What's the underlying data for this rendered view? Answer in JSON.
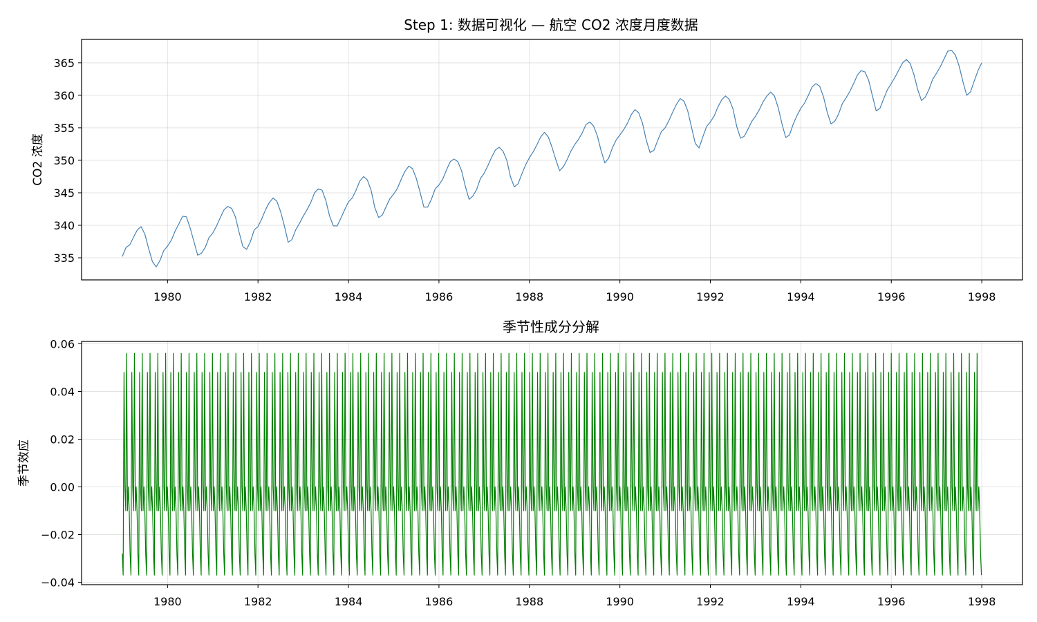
{
  "chart_data": [
    {
      "type": "line",
      "title": "Step 1: 数据可视化 — 航空 CO2 浓度月度数据",
      "xlabel": "",
      "ylabel": "CO2 浓度",
      "xlim": [
        1978.1,
        1998.9
      ],
      "ylim": [
        331.6,
        368.6
      ],
      "xticks": [
        1980,
        1982,
        1984,
        1986,
        1988,
        1990,
        1992,
        1994,
        1996,
        1998
      ],
      "yticks": [
        335,
        340,
        345,
        350,
        355,
        360,
        365
      ],
      "grid": true,
      "color": "#4682b4",
      "series": [
        {
          "start": "1979-01",
          "frequency": "monthly",
          "values": [
            335.2,
            336.6,
            337.0,
            338.2,
            339.3,
            339.8,
            338.6,
            336.4,
            334.4,
            333.6,
            334.6,
            336.1,
            336.8,
            337.7,
            339.1,
            340.2,
            341.4,
            341.3,
            339.6,
            337.5,
            335.4,
            335.7,
            336.6,
            338.1,
            338.8,
            339.9,
            341.2,
            342.4,
            342.9,
            342.6,
            341.3,
            338.9,
            336.7,
            336.3,
            337.5,
            339.3,
            339.8,
            341.0,
            342.4,
            343.5,
            344.2,
            343.7,
            342.1,
            339.9,
            337.4,
            337.8,
            339.3,
            340.3,
            341.4,
            342.4,
            343.5,
            345.0,
            345.6,
            345.4,
            343.8,
            341.4,
            339.9,
            339.9,
            341.1,
            342.4,
            343.6,
            344.2,
            345.4,
            346.8,
            347.5,
            347.0,
            345.4,
            342.7,
            341.2,
            341.6,
            342.9,
            344.1,
            344.8,
            345.7,
            347.1,
            348.3,
            349.1,
            348.7,
            347.2,
            345.1,
            342.8,
            342.8,
            344.0,
            345.6,
            346.2,
            347.1,
            348.5,
            349.8,
            350.2,
            349.8,
            348.4,
            346.0,
            344.0,
            344.5,
            345.5,
            347.2,
            348.0,
            349.2,
            350.5,
            351.6,
            352.0,
            351.4,
            350.0,
            347.4,
            345.9,
            346.4,
            347.9,
            349.3,
            350.4,
            351.3,
            352.4,
            353.6,
            354.3,
            353.6,
            352.0,
            350.1,
            348.4,
            349.0,
            350.1,
            351.4,
            352.4,
            353.2,
            354.2,
            355.5,
            355.9,
            355.3,
            353.8,
            351.5,
            349.6,
            350.3,
            351.9,
            353.1,
            353.9,
            354.7,
            355.7,
            357.0,
            357.8,
            357.3,
            355.7,
            353.1,
            351.2,
            351.5,
            353.0,
            354.4,
            355.0,
            356.1,
            357.4,
            358.6,
            359.5,
            359.1,
            357.6,
            355.1,
            352.6,
            351.9,
            353.6,
            355.2,
            355.9,
            356.8,
            358.2,
            359.3,
            359.9,
            359.4,
            357.9,
            355.2,
            353.4,
            353.7,
            354.8,
            356.0,
            356.8,
            357.8,
            359.0,
            359.9,
            360.5,
            359.9,
            358.1,
            355.6,
            353.5,
            353.9,
            355.6,
            356.9,
            358.0,
            358.8,
            360.0,
            361.3,
            361.8,
            361.4,
            359.8,
            357.4,
            355.6,
            356.0,
            357.1,
            358.7,
            359.6,
            360.6,
            361.8,
            363.1,
            363.8,
            363.6,
            362.3,
            359.9,
            357.6,
            358.0,
            359.5,
            360.9,
            361.8,
            362.8,
            363.9,
            365.0,
            365.5,
            364.9,
            363.2,
            360.9,
            359.2,
            359.7,
            360.9,
            362.5,
            363.4,
            364.4,
            365.6,
            366.8,
            366.9,
            366.2,
            364.5,
            362.1,
            360.0,
            360.5,
            362.2,
            363.8,
            365.0
          ]
        }
      ]
    },
    {
      "type": "line",
      "title": "季节性成分分解",
      "xlabel": "",
      "ylabel": "季节效应",
      "xlim": [
        1978.1,
        1998.9
      ],
      "ylim": [
        -0.041,
        0.061
      ],
      "xticks": [
        1980,
        1982,
        1984,
        1986,
        1988,
        1990,
        1992,
        1994,
        1996,
        1998
      ],
      "yticks": [
        -0.04,
        -0.02,
        0.0,
        0.02,
        0.04,
        0.06
      ],
      "ytick_labels": [
        "−0.04",
        "−0.02",
        "0.00",
        "0.02",
        "0.04",
        "0.06"
      ],
      "grid": true,
      "color": "#008000",
      "series": [
        {
          "start": "1979-01",
          "frequency": "weekly",
          "cycle": [
            -0.028,
            -0.037,
            0.048,
            0.0,
            -0.01,
            0.056,
            -0.01,
            0.0,
            -0.01
          ],
          "end": 1998.0
        }
      ]
    }
  ]
}
